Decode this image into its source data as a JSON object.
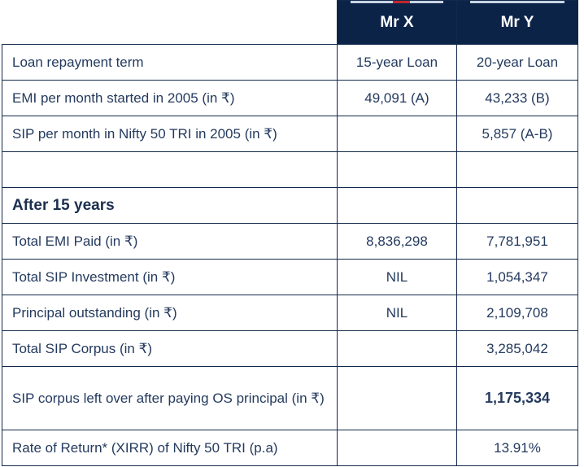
{
  "columns": {
    "mr_x": "Mr X",
    "mr_y": "Mr Y"
  },
  "colors": {
    "header_bg": "#0c2348",
    "border": "#13294b",
    "text": "#243a5e",
    "accent_red": "#c0272d"
  },
  "rows": [
    {
      "label": "Loan repayment term",
      "mr_x": "15-year Loan",
      "mr_y": "20-year Loan"
    },
    {
      "label": "EMI per month started in 2005 (in ₹)",
      "mr_x": "49,091 (A)",
      "mr_y": "43,233 (B)"
    },
    {
      "label": "SIP per month in Nifty 50 TRI in 2005 (in ₹)",
      "mr_x": "",
      "mr_y": "5,857 (A-B)"
    },
    {
      "label": "",
      "mr_x": "",
      "mr_y": ""
    },
    {
      "label": "After 15 years",
      "mr_x": "",
      "mr_y": ""
    },
    {
      "label": "Total EMI Paid (in ₹)",
      "mr_x": "8,836,298",
      "mr_y": "7,781,951"
    },
    {
      "label": "Total SIP Investment (in ₹)",
      "mr_x": "NIL",
      "mr_y": "1,054,347"
    },
    {
      "label": "Principal outstanding (in ₹)",
      "mr_x": "NIL",
      "mr_y": "2,109,708"
    },
    {
      "label": "Total SIP Corpus (in ₹)",
      "mr_x": "",
      "mr_y": "3,285,042"
    },
    {
      "label": "SIP corpus left over after paying OS principal (in ₹)",
      "mr_x": "",
      "mr_y": "1,175,334"
    },
    {
      "label": "Rate of Return* (XIRR) of Nifty 50 TRI (p.a)",
      "mr_x": "",
      "mr_y": "13.91%"
    }
  ]
}
